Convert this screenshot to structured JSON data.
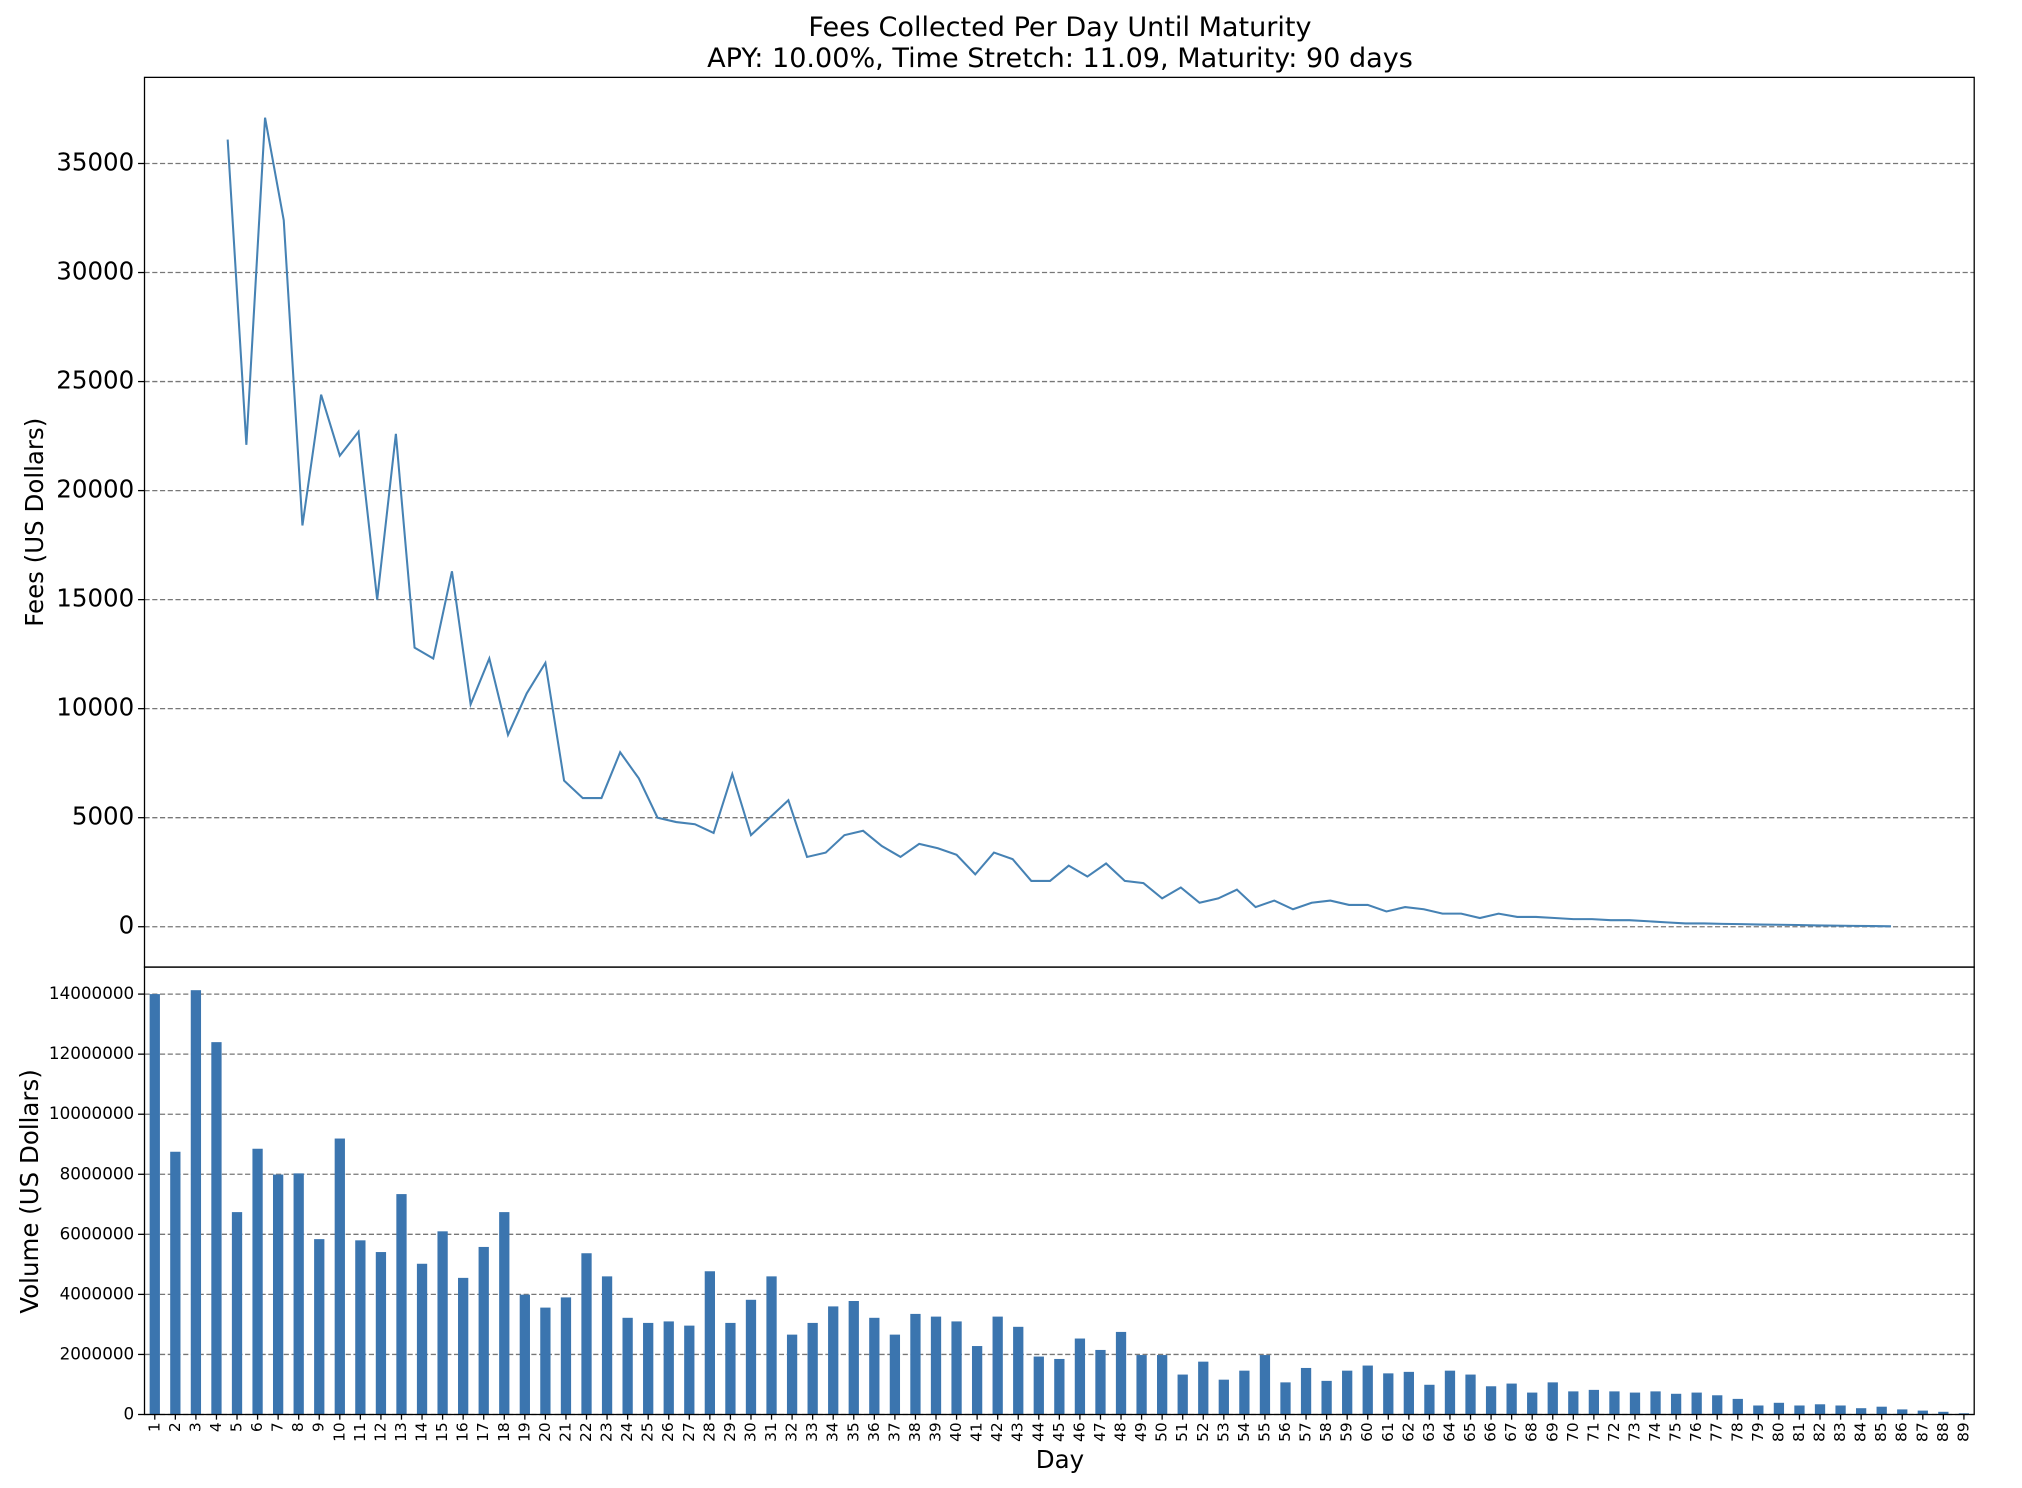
{
  "chart_data": [
    {
      "type": "line",
      "title": "Fees Collected Per Day Until Maturity",
      "subtitle": "APY: 10.00%, Time Stretch: 11.09, Maturity: 90 days",
      "ylabel": "Fees (US Dollars)",
      "color": "#4682b4",
      "x": [
        0,
        1,
        2,
        3,
        4,
        5,
        6,
        7,
        8,
        9,
        10,
        11,
        12,
        13,
        14,
        15,
        16,
        17,
        18,
        19,
        20,
        21,
        22,
        23,
        24,
        25,
        26,
        27,
        28,
        29,
        30,
        31,
        32,
        33,
        34,
        35,
        36,
        37,
        38,
        39,
        40,
        41,
        42,
        43,
        44,
        45,
        46,
        47,
        48,
        49,
        50,
        51,
        52,
        53,
        54,
        55,
        56,
        57,
        58,
        59,
        60,
        61,
        62,
        63,
        64,
        65,
        66,
        67,
        68,
        69,
        70,
        71,
        72,
        73,
        74,
        75,
        76,
        77,
        78,
        79,
        80,
        81,
        82,
        83,
        84,
        85,
        86,
        87,
        88,
        89
      ],
      "values": [
        36100,
        22100,
        37100,
        32400,
        18400,
        24400,
        21600,
        22700,
        15000,
        22600,
        12800,
        12300,
        16300,
        10200,
        12300,
        8800,
        10700,
        12100,
        6700,
        5900,
        5900,
        8000,
        6800,
        5000,
        4800,
        4700,
        4300,
        7000,
        4200,
        5000,
        5800,
        3200,
        3400,
        4200,
        4400,
        3700,
        3200,
        3800,
        3600,
        3300,
        2400,
        3400,
        3100,
        2100,
        2100,
        2800,
        2300,
        2900,
        2100,
        2000,
        1300,
        1800,
        1100,
        1300,
        1700,
        900,
        1200,
        800,
        1100,
        1200,
        1000,
        1000,
        700,
        900,
        800,
        600,
        600,
        400,
        600,
        450,
        450,
        400,
        350,
        350,
        300,
        300,
        250,
        200,
        150,
        150,
        130,
        120,
        100,
        90,
        80,
        60,
        50,
        40,
        30,
        20
      ],
      "xlim": [
        -4.45,
        93.45
      ],
      "ylim": [
        -1850,
        38950
      ],
      "yticks": [
        0,
        5000,
        10000,
        15000,
        20000,
        25000,
        30000,
        35000
      ],
      "grid": true
    },
    {
      "type": "bar",
      "ylabel": "Volume (US Dollars)",
      "xlabel": "Day",
      "color": "#3b75af",
      "categories": [
        "1",
        "2",
        "3",
        "4",
        "5",
        "6",
        "7",
        "8",
        "9",
        "10",
        "11",
        "12",
        "13",
        "14",
        "15",
        "16",
        "17",
        "18",
        "19",
        "20",
        "21",
        "22",
        "23",
        "24",
        "25",
        "26",
        "27",
        "28",
        "29",
        "30",
        "31",
        "32",
        "33",
        "34",
        "35",
        "36",
        "37",
        "38",
        "39",
        "40",
        "41",
        "42",
        "43",
        "44",
        "45",
        "46",
        "47",
        "48",
        "49",
        "50",
        "51",
        "52",
        "53",
        "54",
        "55",
        "56",
        "57",
        "58",
        "59",
        "60",
        "61",
        "62",
        "63",
        "64",
        "65",
        "66",
        "67",
        "68",
        "69",
        "70",
        "71",
        "72",
        "73",
        "74",
        "75",
        "76",
        "77",
        "78",
        "79",
        "80",
        "81",
        "82",
        "83",
        "84",
        "85",
        "86",
        "87",
        "88",
        "89"
      ],
      "values": [
        14000000,
        8750000,
        14130000,
        12400000,
        6740000,
        8850000,
        7990000,
        8030000,
        5840000,
        9190000,
        5800000,
        5410000,
        7340000,
        5020000,
        6100000,
        4550000,
        5580000,
        6740000,
        3990000,
        3560000,
        3900000,
        5370000,
        4600000,
        3220000,
        3050000,
        3100000,
        2960000,
        4770000,
        3050000,
        3820000,
        4600000,
        2660000,
        3050000,
        3600000,
        3780000,
        3220000,
        2660000,
        3350000,
        3260000,
        3100000,
        2280000,
        3260000,
        2920000,
        1930000,
        1850000,
        2530000,
        2150000,
        2750000,
        1980000,
        1980000,
        1330000,
        1760000,
        1160000,
        1460000,
        1980000,
        1070000,
        1550000,
        1120000,
        1460000,
        1630000,
        1370000,
        1420000,
        990000,
        1460000,
        1330000,
        940000,
        1030000,
        730000,
        1070000,
        770000,
        820000,
        770000,
        730000,
        770000,
        690000,
        730000,
        640000,
        520000,
        300000,
        390000,
        300000,
        340000,
        300000,
        210000,
        260000,
        170000,
        130000,
        90000,
        40000
      ],
      "ylim": [
        0,
        14900000
      ],
      "yticks": [
        0,
        2000000,
        4000000,
        6000000,
        8000000,
        10000000,
        12000000,
        14000000
      ],
      "grid": true
    }
  ]
}
